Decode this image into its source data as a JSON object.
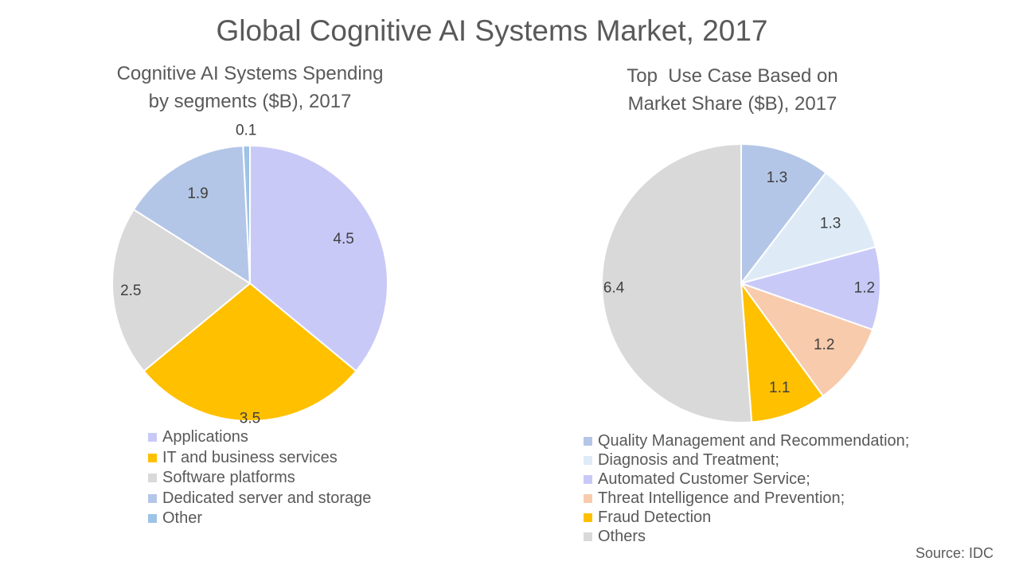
{
  "title": "Global Cognitive AI Systems Market, 2017",
  "source": "Source: IDC",
  "chart_data": [
    {
      "type": "pie",
      "title_lines": [
        "Cognitive AI Systems Spending",
        "by segments ($B), 2017"
      ],
      "categories": [
        "Applications",
        "IT and business services",
        "Software platforms",
        "Dedicated server and storage",
        "Other"
      ],
      "values": [
        4.5,
        3.5,
        2.5,
        1.9,
        0.1
      ],
      "labels": [
        "4.5",
        "3.5",
        "2.5",
        "1.9",
        "0.1"
      ],
      "colors": [
        "#C9C9F8",
        "#FFC000",
        "#D9D9D9",
        "#B4C6E7",
        "#9DC3E6"
      ],
      "start_angle_deg": 0,
      "direction": "clockwise",
      "legend_position": "bottom"
    },
    {
      "type": "pie",
      "title_lines": [
        "Top  Use Case Based on",
        "Market Share ($B), 2017"
      ],
      "categories": [
        "Quality Management and Recommendation;",
        "Diagnosis and Treatment;",
        "Automated Customer Service;",
        "Threat Intelligence and Prevention;",
        "Fraud Detection",
        "Others"
      ],
      "values": [
        1.3,
        1.3,
        1.2,
        1.2,
        1.1,
        6.4
      ],
      "labels": [
        "1.3",
        "1.3",
        "1.2",
        "1.2",
        "1.1",
        "6.4"
      ],
      "colors": [
        "#B4C6E7",
        "#DEEBF7",
        "#C9C9F8",
        "#F8CBAD",
        "#FFC000",
        "#D9D9D9"
      ],
      "start_angle_deg": 0,
      "direction": "clockwise",
      "legend_position": "bottom"
    }
  ]
}
